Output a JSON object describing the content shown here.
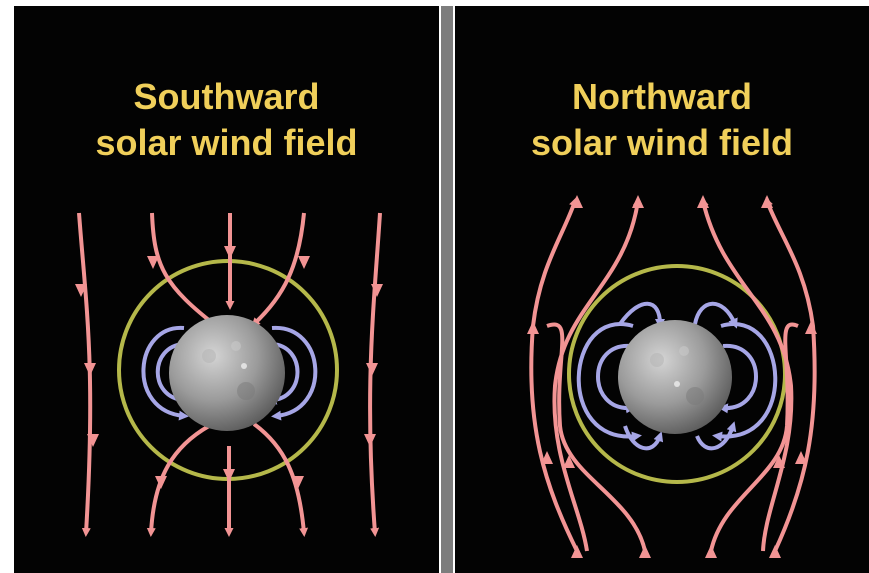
{
  "panels": [
    {
      "title_line1": "Southward",
      "title_line2": "solar wind field"
    },
    {
      "title_line1": "Northward",
      "title_line2": "solar wind field"
    }
  ],
  "colors": {
    "background": "#030303",
    "divider": "#7d7d7d",
    "title": "#f0cf5a",
    "solar_wind_field_lines": "#f29494",
    "magnetosphere_field_lines": "#a6a6e6",
    "magnetopause_circle": "#b5b84a",
    "planet": "#9a9a9a"
  },
  "icons": [
    "planet-mercury",
    "field-line-arrow"
  ]
}
